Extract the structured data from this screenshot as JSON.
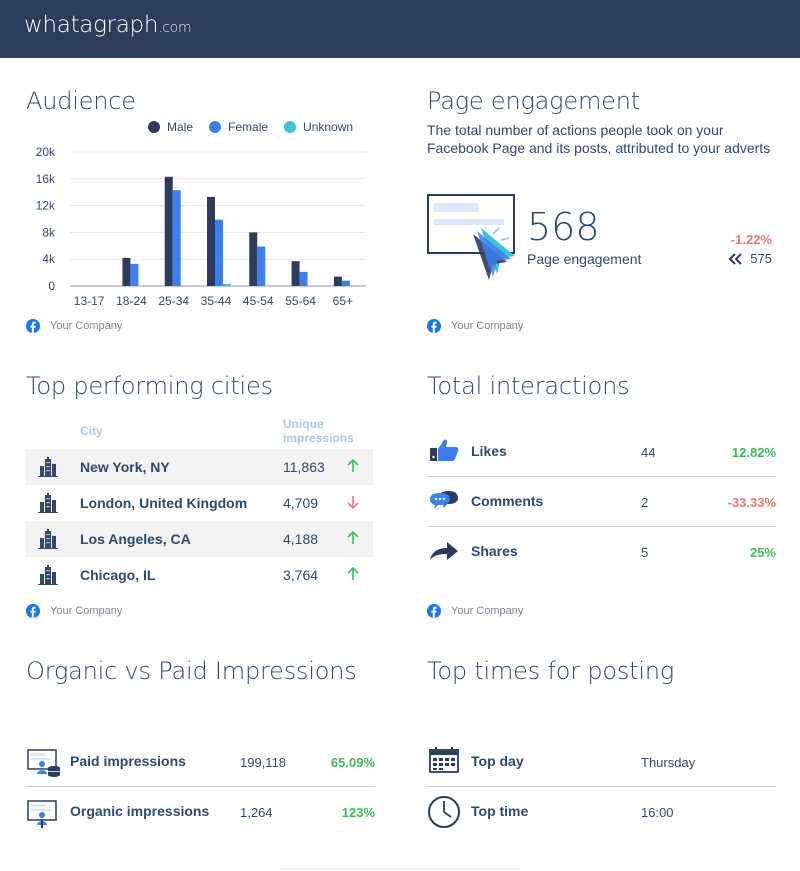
{
  "brand": {
    "logo": "whatagraph",
    "logo_domain": ".com"
  },
  "colors": {
    "male": "#2b3d5a",
    "female": "#3d7ff0",
    "unknown": "#3ec2d6",
    "positive": "#3cba5a",
    "negative": "#e87a7a"
  },
  "audience": {
    "title": "Audience",
    "legend": [
      "Male",
      "Female",
      "Unknown"
    ],
    "source": "Your Company"
  },
  "chart_data": {
    "type": "bar",
    "categories": [
      "13-17",
      "18-24",
      "25-34",
      "35-44",
      "45-54",
      "55-64",
      "65+"
    ],
    "series": [
      {
        "name": "Male",
        "values": [
          0,
          4200,
          16300,
          13300,
          8000,
          3700,
          1400
        ]
      },
      {
        "name": "Female",
        "values": [
          0,
          3300,
          14300,
          9900,
          5900,
          2100,
          800
        ]
      },
      {
        "name": "Unknown",
        "values": [
          0,
          0,
          0,
          300,
          0,
          0,
          0
        ]
      }
    ],
    "yticks": [
      "0",
      "4k",
      "8k",
      "12k",
      "16k",
      "20k"
    ],
    "ylim": [
      0,
      20000
    ],
    "legend_position": "top-right",
    "grid": true
  },
  "page_engagement": {
    "title": "Page engagement",
    "description": "The total number of actions people took on your Facebook Page and its posts, attributed to your adverts",
    "value": "568",
    "caption": "Page engagement",
    "change": "-1.22%",
    "previous": "575",
    "source": "Your Company"
  },
  "cities": {
    "title": "Top performing cities",
    "col_city": "City",
    "col_impressions": "Unique impressions",
    "rows": [
      {
        "name": "New York, NY",
        "value": "11,863",
        "trend": "up"
      },
      {
        "name": "London, United Kingdom",
        "value": "4,709",
        "trend": "down"
      },
      {
        "name": "Los Angeles, CA",
        "value": "4,188",
        "trend": "up"
      },
      {
        "name": "Chicago, IL",
        "value": "3,764",
        "trend": "up"
      }
    ],
    "source": "Your Company"
  },
  "interactions": {
    "title": "Total interactions",
    "rows": [
      {
        "label": "Likes",
        "value": "44",
        "change": "12.82%",
        "icon": "thumbs-up-icon"
      },
      {
        "label": "Comments",
        "value": "2",
        "change": "-33.33%",
        "icon": "comments-icon"
      },
      {
        "label": "Shares",
        "value": "5",
        "change": "25%",
        "icon": "share-arrow-icon"
      }
    ],
    "source": "Your Company"
  },
  "impressions": {
    "title": "Organic vs Paid Impressions",
    "rows": [
      {
        "label": "Paid impressions",
        "value": "199,118",
        "change": "65.09%",
        "icon": "paid-impressions-icon"
      },
      {
        "label": "Organic impressions",
        "value": "1,264",
        "change": "123%",
        "icon": "organic-impressions-icon"
      }
    ]
  },
  "posting": {
    "title": "Top times for posting",
    "rows": [
      {
        "label": "Top day",
        "value": "Thursday",
        "icon": "calendar-icon"
      },
      {
        "label": "Top time",
        "value": "16:00",
        "icon": "clock-icon"
      }
    ]
  }
}
